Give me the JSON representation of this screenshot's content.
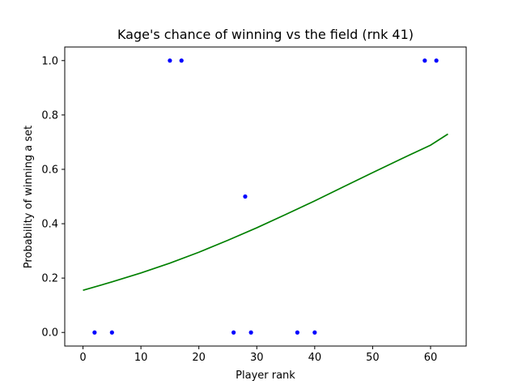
{
  "chart_data": {
    "type": "scatter",
    "title": "Kage's chance of winning vs the field (rnk 41)",
    "xlabel": "Player rank",
    "ylabel": "Probability of winning a set",
    "xlim": [
      -3.15,
      66.15
    ],
    "ylim": [
      -0.05,
      1.05
    ],
    "x_ticks": [
      0,
      10,
      20,
      30,
      40,
      50,
      60
    ],
    "y_ticks": [
      0.0,
      0.2,
      0.4,
      0.6,
      0.8,
      1.0
    ],
    "y_tick_labels": [
      "0.0",
      "0.2",
      "0.4",
      "0.6",
      "0.8",
      "1.0"
    ],
    "grid": false,
    "series": [
      {
        "kind": "points",
        "color": "#0000ff",
        "x": [
          2,
          5,
          15,
          17,
          26,
          28,
          29,
          37,
          40,
          59,
          61
        ],
        "y": [
          0,
          0,
          1,
          1,
          0,
          0.5,
          0,
          0,
          0,
          1,
          1
        ]
      },
      {
        "kind": "line",
        "color": "#008000",
        "x": [
          0,
          5,
          10,
          15,
          20,
          25,
          30,
          35,
          40,
          45,
          50,
          55,
          60,
          63
        ],
        "y": [
          0.155,
          0.186,
          0.219,
          0.255,
          0.295,
          0.339,
          0.385,
          0.434,
          0.484,
          0.536,
          0.588,
          0.639,
          0.689,
          0.73
        ]
      }
    ]
  }
}
